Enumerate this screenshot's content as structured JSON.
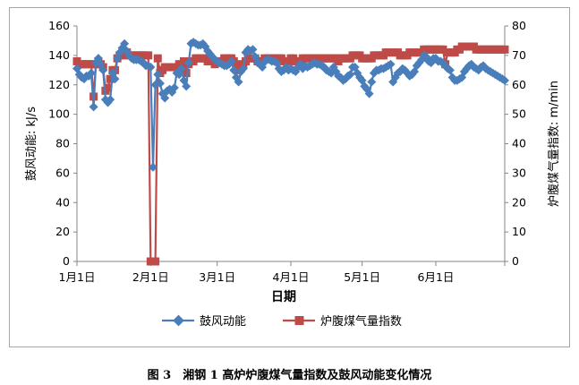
{
  "caption": "图 3　湘钢 1 高炉炉腹煤气量指数及鼓风动能变化情况",
  "chart_data": {
    "type": "line",
    "xlabel": "日期",
    "ylabel_left": "鼓风动能: kJ/s",
    "ylabel_right": "炉腹煤气量指数: m/min",
    "ylim_left": [
      0,
      160
    ],
    "ylim_right": [
      0,
      80
    ],
    "yticks_left": [
      0,
      20,
      40,
      60,
      80,
      100,
      120,
      140,
      160
    ],
    "yticks_right": [
      0,
      10,
      20,
      30,
      40,
      50,
      60,
      70,
      80
    ],
    "x_ticks": [
      "1月1日",
      "2月1日",
      "3月1日",
      "4月1日",
      "5月1日",
      "6月1日"
    ],
    "x_tick_days": [
      0,
      31,
      59,
      90,
      120,
      151
    ],
    "x_range_days": [
      0,
      180
    ],
    "legend_position": "bottom",
    "series": [
      {
        "name": "鼓风动能",
        "axis": "left",
        "color": "#4a7ebb",
        "marker": "diamond",
        "x": [
          0,
          1,
          2,
          3,
          4,
          5,
          6,
          7,
          8,
          9,
          10,
          11,
          12,
          13,
          14,
          15,
          16,
          17,
          18,
          19,
          20,
          21,
          22,
          23,
          24,
          25,
          26,
          27,
          28,
          29,
          30,
          31,
          32,
          33,
          34,
          35,
          36,
          37,
          38,
          39,
          40,
          41,
          42,
          43,
          44,
          45,
          46,
          47,
          48,
          49,
          50,
          51,
          52,
          53,
          54,
          55,
          56,
          57,
          58,
          59,
          60,
          61,
          62,
          63,
          64,
          65,
          66,
          67,
          68,
          69,
          70,
          71,
          72,
          73,
          74,
          75,
          76,
          77,
          78,
          79,
          80,
          81,
          82,
          83,
          84,
          85,
          86,
          87,
          88,
          89,
          90,
          91,
          92,
          93,
          94,
          95,
          96,
          97,
          98,
          99,
          100,
          101,
          102,
          103,
          104,
          105,
          106,
          107,
          108,
          109,
          110,
          111,
          112,
          113,
          114,
          115,
          116,
          117,
          118,
          119,
          120,
          121,
          122,
          123,
          124,
          125,
          126,
          127,
          128,
          129,
          130,
          131,
          132,
          133,
          134,
          135,
          136,
          137,
          138,
          139,
          140,
          141,
          142,
          143,
          144,
          145,
          146,
          147,
          148,
          149,
          150,
          151,
          152,
          153,
          154,
          155,
          156,
          157,
          158,
          159,
          160,
          161,
          162,
          163,
          164,
          165,
          166,
          167,
          168,
          169,
          170,
          171,
          172,
          173,
          174,
          175,
          176,
          177,
          178,
          179,
          180
        ],
        "values": [
          131,
          127,
          125,
          124,
          126,
          126,
          128,
          105,
          135,
          138,
          134,
          130,
          110,
          108,
          110,
          128,
          124,
          138,
          142,
          145,
          148,
          143,
          140,
          138,
          137,
          137,
          137,
          136,
          135,
          133,
          133,
          132,
          64,
          120,
          127,
          121,
          114,
          111,
          116,
          117,
          115,
          118,
          128,
          127,
          131,
          123,
          119,
          135,
          148,
          149,
          148,
          147,
          147,
          148,
          146,
          143,
          141,
          139,
          137,
          136,
          135,
          134,
          133,
          133,
          134,
          136,
          130,
          125,
          122,
          129,
          131,
          142,
          144,
          143,
          144,
          139,
          135,
          134,
          132,
          136,
          137,
          137,
          136,
          136,
          135,
          131,
          129,
          130,
          132,
          130,
          131,
          130,
          129,
          132,
          134,
          131,
          133,
          132,
          133,
          134,
          135,
          134,
          134,
          133,
          132,
          130,
          129,
          128,
          132,
          129,
          126,
          125,
          123,
          124,
          126,
          127,
          132,
          132,
          128,
          125,
          123,
          119,
          117,
          114,
          122,
          128,
          130,
          130,
          131,
          131,
          132,
          133,
          134,
          122,
          125,
          128,
          129,
          131,
          130,
          128,
          126,
          127,
          129,
          133,
          135,
          137,
          140,
          139,
          136,
          135,
          138,
          138,
          136,
          136,
          135,
          133,
          131,
          130,
          125,
          123,
          123,
          124,
          125,
          129,
          131,
          133,
          134,
          132,
          131,
          130,
          132,
          133,
          131,
          130,
          129,
          128,
          127,
          126,
          125,
          124,
          123
        ]
      },
      {
        "name": "炉腹煤气量指数",
        "axis": "right",
        "color": "#be4b48",
        "marker": "square",
        "x": [
          0,
          1,
          2,
          3,
          4,
          5,
          6,
          7,
          8,
          9,
          10,
          11,
          12,
          13,
          14,
          15,
          16,
          17,
          18,
          19,
          20,
          21,
          22,
          23,
          24,
          25,
          26,
          27,
          28,
          29,
          30,
          31,
          32,
          33,
          34,
          35,
          36,
          37,
          38,
          39,
          40,
          41,
          42,
          43,
          44,
          45,
          46,
          47,
          48,
          49,
          50,
          51,
          52,
          53,
          54,
          55,
          56,
          57,
          58,
          59,
          60,
          61,
          62,
          63,
          64,
          65,
          66,
          67,
          68,
          69,
          70,
          71,
          72,
          73,
          74,
          75,
          76,
          77,
          78,
          79,
          80,
          81,
          82,
          83,
          84,
          85,
          86,
          87,
          88,
          89,
          90,
          91,
          92,
          93,
          94,
          95,
          96,
          97,
          98,
          99,
          100,
          101,
          102,
          103,
          104,
          105,
          106,
          107,
          108,
          109,
          110,
          111,
          112,
          113,
          114,
          115,
          116,
          117,
          118,
          119,
          120,
          121,
          122,
          123,
          124,
          125,
          126,
          127,
          128,
          129,
          130,
          131,
          132,
          133,
          134,
          135,
          136,
          137,
          138,
          139,
          140,
          141,
          142,
          143,
          144,
          145,
          146,
          147,
          148,
          149,
          150,
          151,
          152,
          153,
          154,
          155,
          156,
          157,
          158,
          159,
          160,
          161,
          162,
          163,
          164,
          165,
          166,
          167,
          168,
          169,
          170,
          171,
          172,
          173,
          174,
          175,
          176,
          177,
          178,
          179,
          180
        ],
        "values": [
          68,
          67,
          67,
          67,
          67,
          67,
          67,
          56,
          67,
          68,
          67,
          66,
          58,
          59,
          62,
          65,
          65,
          69,
          70,
          70,
          71,
          71,
          70,
          70,
          70,
          70,
          70,
          70,
          70,
          70,
          70,
          0,
          0,
          0,
          69,
          64,
          65,
          66,
          66,
          66,
          66,
          66,
          66,
          67,
          67,
          68,
          64,
          67,
          68,
          68,
          69,
          69,
          69,
          69,
          69,
          68,
          68,
          68,
          67,
          68,
          68,
          68,
          69,
          69,
          69,
          69,
          68,
          67,
          65,
          66,
          67,
          68,
          69,
          69,
          69,
          69,
          68,
          68,
          68,
          69,
          69,
          69,
          69,
          69,
          69,
          69,
          69,
          68,
          68,
          68,
          69,
          69,
          68,
          68,
          68,
          69,
          69,
          69,
          69,
          69,
          69,
          69,
          69,
          69,
          69,
          69,
          69,
          69,
          69,
          69,
          68,
          69,
          69,
          69,
          69,
          69,
          70,
          70,
          70,
          70,
          69,
          69,
          69,
          69,
          69,
          70,
          70,
          70,
          70,
          70,
          71,
          71,
          71,
          71,
          71,
          71,
          70,
          70,
          70,
          70,
          71,
          71,
          71,
          71,
          71,
          71,
          72,
          72,
          72,
          72,
          72,
          72,
          72,
          72,
          72,
          67,
          71,
          71,
          71,
          71,
          72,
          72,
          73,
          73,
          73,
          73,
          73,
          73,
          72,
          72,
          72,
          72,
          72,
          72,
          72,
          72,
          72,
          72,
          72,
          72,
          72
        ]
      }
    ]
  }
}
